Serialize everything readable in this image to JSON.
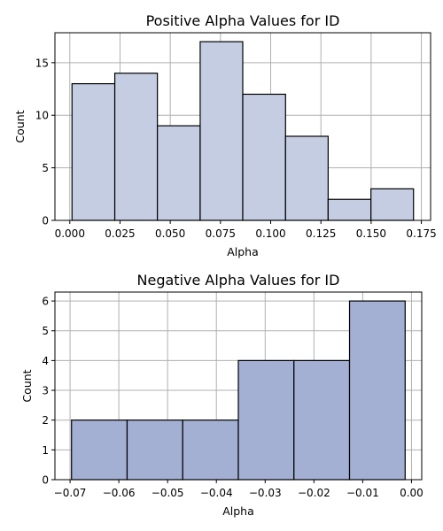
{
  "chart_data": [
    {
      "type": "bar",
      "title": "Positive Alpha Values for ID",
      "xlabel": "Alpha",
      "ylabel": "Count",
      "bin_edges": [
        0.0011,
        0.0224,
        0.0436,
        0.0649,
        0.0861,
        0.1074,
        0.1286,
        0.1499,
        0.1711
      ],
      "values": [
        13,
        14,
        9,
        17,
        12,
        8,
        2,
        3
      ],
      "xlim": [
        -0.0074,
        0.1796
      ],
      "ylim": [
        0,
        17.85
      ],
      "xticks": [
        "0.000",
        "0.025",
        "0.050",
        "0.075",
        "0.100",
        "0.125",
        "0.150",
        "0.175"
      ],
      "xtick_values": [
        0.0,
        0.025,
        0.05,
        0.075,
        0.1,
        0.125,
        0.15,
        0.175
      ],
      "yticks": [
        "0",
        "5",
        "10",
        "15"
      ],
      "ytick_values": [
        0,
        5,
        10,
        15
      ],
      "grid": true,
      "bar_color": "#c4cde1",
      "edge_color": "#000000"
    },
    {
      "type": "bar",
      "title": "Negative Alpha Values for ID",
      "xlabel": "Alpha",
      "ylabel": "Count",
      "bin_edges": [
        -0.0697,
        -0.0583,
        -0.0469,
        -0.0355,
        -0.0241,
        -0.0127,
        -0.0013
      ],
      "values": [
        2,
        2,
        2,
        4,
        4,
        6
      ],
      "xlim": [
        -0.0731,
        0.0021
      ],
      "ylim": [
        0,
        6.3
      ],
      "xticks": [
        "−0.07",
        "−0.06",
        "−0.05",
        "−0.04",
        "−0.03",
        "−0.02",
        "−0.01",
        "0.00"
      ],
      "xtick_values": [
        -0.07,
        -0.06,
        -0.05,
        -0.04,
        -0.03,
        -0.02,
        -0.01,
        0.0
      ],
      "yticks": [
        "0",
        "1",
        "2",
        "3",
        "4",
        "5",
        "6"
      ],
      "ytick_values": [
        0,
        1,
        2,
        3,
        4,
        5,
        6
      ],
      "grid": true,
      "bar_color": "#a3b0d4",
      "edge_color": "#000000"
    }
  ]
}
